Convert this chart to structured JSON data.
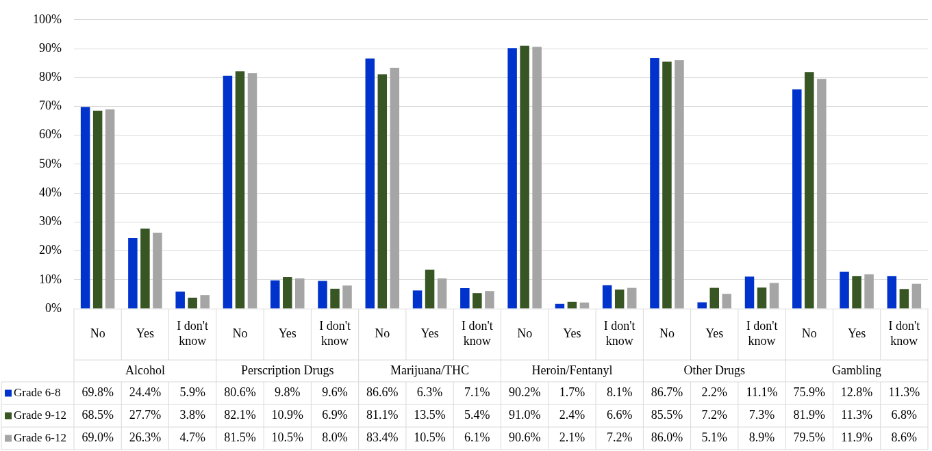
{
  "chart_data": {
    "type": "bar",
    "categories": [
      "No",
      "Yes",
      "I don't know",
      "No",
      "Yes",
      "I don't know",
      "No",
      "Yes",
      "I don't know",
      "No",
      "Yes",
      "I don't know",
      "No",
      "Yes",
      "I don't know",
      "No",
      "Yes",
      "I don't know"
    ],
    "annotations": [
      "Alcohol",
      "Perscription Drugs",
      "Marijuana/THC",
      "Heroin/Fentanyl",
      "Other Drugs",
      "Gambling"
    ],
    "series": [
      {
        "name": "Grade 6-8",
        "color": "#0033cc",
        "values": [
          69.8,
          24.4,
          5.9,
          80.6,
          9.8,
          9.6,
          86.6,
          6.3,
          7.1,
          90.2,
          1.7,
          8.1,
          86.7,
          2.2,
          11.1,
          75.9,
          12.8,
          11.3
        ],
        "value_labels": [
          "69.8%",
          "24.4%",
          "5.9%",
          "80.6%",
          "9.8%",
          "9.6%",
          "86.6%",
          "6.3%",
          "7.1%",
          "90.2%",
          "1.7%",
          "8.1%",
          "86.7%",
          "2.2%",
          "11.1%",
          "75.9%",
          "12.8%",
          "11.3%"
        ]
      },
      {
        "name": "Grade 9-12",
        "color": "#375623",
        "values": [
          68.5,
          27.7,
          3.8,
          82.1,
          10.9,
          6.9,
          81.1,
          13.5,
          5.4,
          91.0,
          2.4,
          6.6,
          85.5,
          7.2,
          7.3,
          81.9,
          11.3,
          6.8
        ],
        "value_labels": [
          "68.5%",
          "27.7%",
          "3.8%",
          "82.1%",
          "10.9%",
          "6.9%",
          "81.1%",
          "13.5%",
          "5.4%",
          "91.0%",
          "2.4%",
          "6.6%",
          "85.5%",
          "7.2%",
          "7.3%",
          "81.9%",
          "11.3%",
          "6.8%"
        ]
      },
      {
        "name": "Grade 6-12",
        "color": "#a5a5a5",
        "values": [
          69.0,
          26.3,
          4.7,
          81.5,
          10.5,
          8.0,
          83.4,
          10.5,
          6.1,
          90.6,
          2.1,
          7.2,
          86.0,
          5.1,
          8.9,
          79.5,
          11.9,
          8.6
        ],
        "value_labels": [
          "69.0%",
          "26.3%",
          "4.7%",
          "81.5%",
          "10.5%",
          "8.0%",
          "83.4%",
          "10.5%",
          "6.1%",
          "90.6%",
          "2.1%",
          "7.2%",
          "86.0%",
          "5.1%",
          "8.9%",
          "79.5%",
          "11.9%",
          "8.6%"
        ]
      }
    ],
    "ylim": [
      0,
      100
    ],
    "yticks": [
      {
        "value": 0,
        "label": "0%"
      },
      {
        "value": 10,
        "label": "10%"
      },
      {
        "value": 20,
        "label": "20%"
      },
      {
        "value": 30,
        "label": "30%"
      },
      {
        "value": 40,
        "label": "40%"
      },
      {
        "value": 50,
        "label": "50%"
      },
      {
        "value": 60,
        "label": "60%"
      },
      {
        "value": 70,
        "label": "70%"
      },
      {
        "value": 80,
        "label": "80%"
      },
      {
        "value": 90,
        "label": "90%"
      },
      {
        "value": 100,
        "label": "100%"
      }
    ],
    "grid": "y",
    "legend": "bottom left"
  }
}
